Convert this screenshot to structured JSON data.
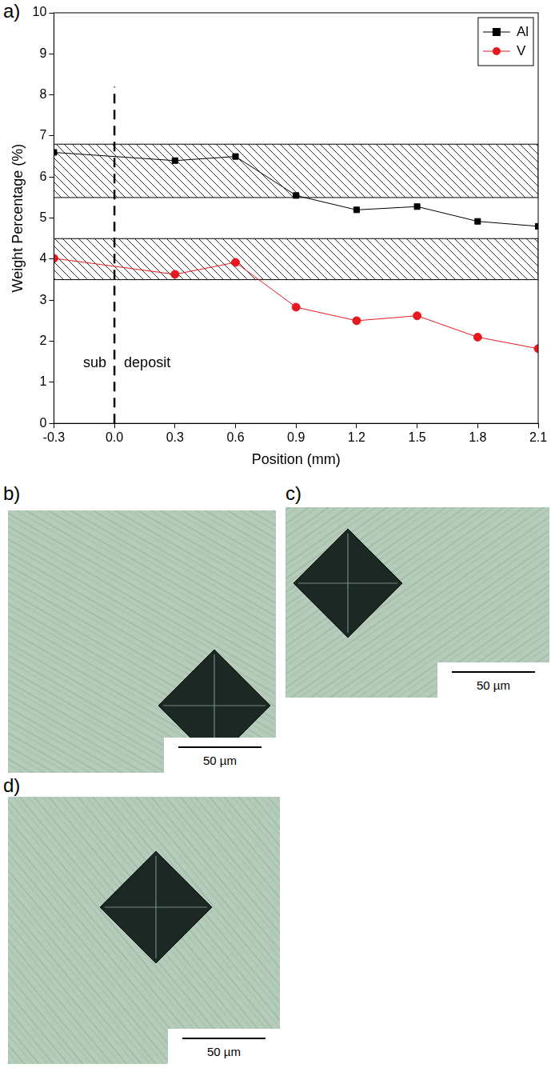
{
  "chart_data": {
    "type": "line",
    "panel_label": "a)",
    "x_label": "Position (mm)",
    "y_label": "Weight Percentage (%)",
    "x": [
      -0.3,
      0.3,
      0.6,
      0.9,
      1.2,
      1.5,
      1.8,
      2.1
    ],
    "series": [
      {
        "name": "Al",
        "color": "#000000",
        "marker": "square",
        "values": [
          6.6,
          6.4,
          6.5,
          5.55,
          5.2,
          5.28,
          4.92,
          4.8
        ]
      },
      {
        "name": "V",
        "color": "#e8191e",
        "marker": "circle",
        "values": [
          4.02,
          3.63,
          3.92,
          2.83,
          2.5,
          2.62,
          2.1,
          1.82
        ]
      }
    ],
    "bands": [
      {
        "range": [
          5.5,
          6.8
        ]
      },
      {
        "range": [
          3.5,
          4.5
        ]
      }
    ],
    "vline": {
      "x": 0,
      "y_range": [
        0,
        8.2
      ],
      "line_style": "dashed"
    },
    "annotations": [
      {
        "text": "sub",
        "side": "left"
      },
      {
        "text": "deposit",
        "side": "right"
      }
    ],
    "xlim": [
      -0.3,
      2.1
    ],
    "xticks": [
      -0.3,
      {
        "value": 0,
        "label": "0.0"
      },
      0.3,
      0.6,
      0.9,
      1.2,
      1.5,
      1.8,
      2.1
    ],
    "ylim": [
      0,
      10
    ],
    "yticks": [
      0,
      1,
      2,
      3,
      4,
      5,
      6,
      7,
      8,
      9,
      10
    ],
    "grid": false,
    "legend": "upper right"
  },
  "images": [
    {
      "panel_label": "b)",
      "scale_bar": "50 µm"
    },
    {
      "panel_label": "c)",
      "scale_bar": "50 µm"
    },
    {
      "panel_label": "d)",
      "scale_bar": "50 µm"
    }
  ]
}
